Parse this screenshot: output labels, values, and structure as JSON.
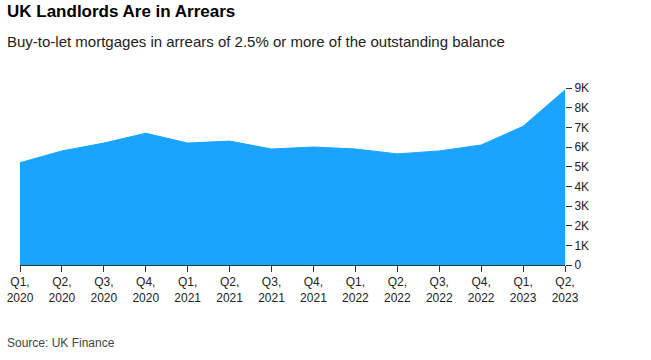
{
  "chart_data": {
    "type": "area",
    "title": "UK Landlords Are in Arrears",
    "subtitle": "Buy-to-let mortgages in arrears of 2.5% or more of the outstanding balance",
    "source": "Source: UK Finance",
    "categories": [
      "Q1, 2020",
      "Q2, 2020",
      "Q3, 2020",
      "Q4, 2020",
      "Q1, 2021",
      "Q2, 2021",
      "Q3, 2021",
      "Q4, 2021",
      "Q1, 2022",
      "Q2, 2022",
      "Q3, 2022",
      "Q4, 2022",
      "Q1, 2023",
      "Q2, 2023"
    ],
    "values": [
      5200,
      5800,
      6200,
      6700,
      6200,
      6300,
      5900,
      6000,
      5900,
      5650,
      5800,
      6100,
      7050,
      8900
    ],
    "color": "#1aa3ff",
    "ylim": [
      0,
      9000
    ],
    "yticks": [
      0,
      {
        "value": 1000,
        "label": "1K"
      },
      {
        "value": 2000,
        "label": "2K"
      },
      {
        "value": 3000,
        "label": "3K"
      },
      {
        "value": 4000,
        "label": "4K"
      },
      {
        "value": 5000,
        "label": "5K"
      },
      {
        "value": 6000,
        "label": "6K"
      },
      {
        "value": 7000,
        "label": "7K"
      },
      {
        "value": 8000,
        "label": "8K"
      },
      {
        "value": 9000,
        "label": "9K"
      }
    ],
    "grid": false
  }
}
